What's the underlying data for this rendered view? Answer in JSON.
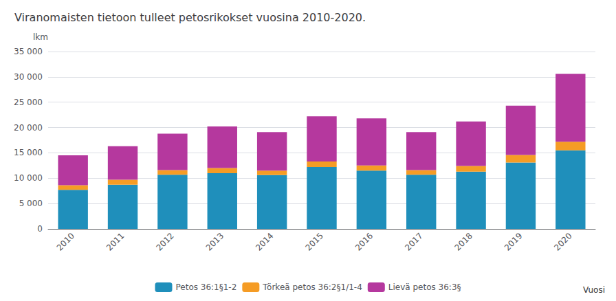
{
  "chart_data": {
    "type": "bar",
    "stacked": true,
    "title": "Viranomaisten tietoon tulleet petosrikokset vuosina 2010-2020.",
    "categories": [
      "2010",
      "2011",
      "2012",
      "2013",
      "2014",
      "2015",
      "2016",
      "2017",
      "2018",
      "2019",
      "2020"
    ],
    "series": [
      {
        "name": "Petos 36:1§1-2",
        "color": "#1F8FBB",
        "values": [
          7700,
          8700,
          10700,
          11000,
          10600,
          12200,
          11500,
          10700,
          11300,
          13100,
          15500
        ]
      },
      {
        "name": "Törkeä petos 36:2§1/1-4",
        "color": "#F59C25",
        "values": [
          900,
          1000,
          900,
          1000,
          900,
          1100,
          1000,
          900,
          1100,
          1500,
          1700
        ]
      },
      {
        "name": "Lievä petos 36:3§",
        "color": "#B5389E",
        "values": [
          5900,
          6600,
          7200,
          8200,
          7600,
          8900,
          9300,
          7500,
          8800,
          9700,
          13400
        ]
      }
    ],
    "ylabel": "lkm",
    "xlabel": "Vuosi",
    "ylim": [
      0,
      35000
    ],
    "yticks": [
      0,
      {
        "value": 5000,
        "label": "5 000"
      },
      {
        "value": 10000,
        "label": "10 000"
      },
      {
        "value": 15000,
        "label": "15 000"
      },
      {
        "value": 20000,
        "label": "20 000"
      },
      {
        "value": 25000,
        "label": "25 000"
      },
      {
        "value": 30000,
        "label": "30 000"
      },
      {
        "value": 35000,
        "label": "35 000"
      }
    ],
    "grid": true,
    "legend": "bottom"
  }
}
